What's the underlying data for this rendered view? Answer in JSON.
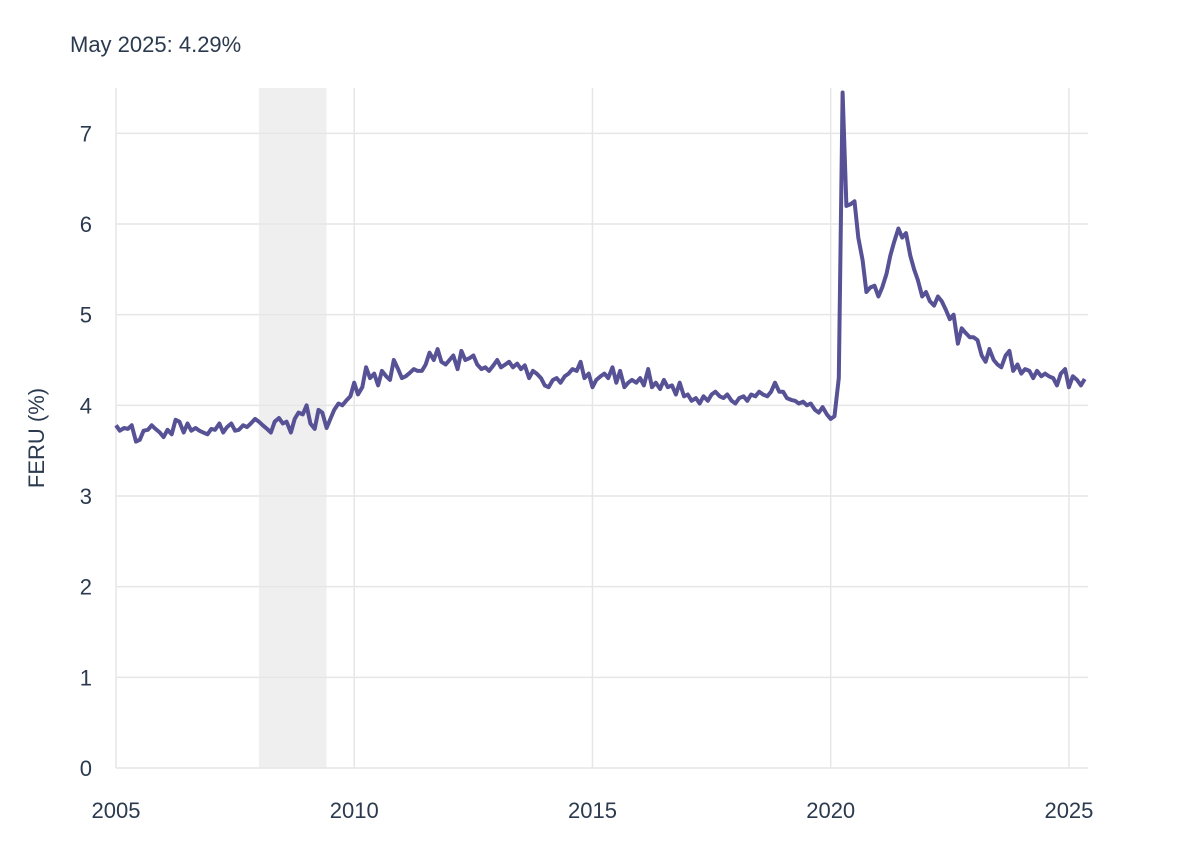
{
  "annotation": "May 2025: 4.29%",
  "chart_data": {
    "type": "line",
    "title": "",
    "xlabel": "",
    "ylabel": "FERU (%)",
    "xlim": [
      2005.0,
      2025.4
    ],
    "ylim": [
      0,
      7.5
    ],
    "x_ticks": [
      2005,
      2010,
      2015,
      2020,
      2025
    ],
    "y_ticks": [
      0,
      1,
      2,
      3,
      4,
      5,
      6,
      7
    ],
    "grid": true,
    "legend": "none",
    "colors": {
      "line": "#575195",
      "grid": "#e6e6e6",
      "recession": "#efefef",
      "text": "#2b3a4e"
    },
    "recessions": [
      [
        2008.0,
        2009.42
      ]
    ],
    "series": [
      {
        "x": [
          2005.0,
          2005.08,
          2005.17,
          2005.25,
          2005.33,
          2005.42,
          2005.5,
          2005.58,
          2005.67,
          2005.75,
          2005.83,
          2005.92,
          2006.0,
          2006.08,
          2006.17,
          2006.25,
          2006.33,
          2006.42,
          2006.5,
          2006.58,
          2006.67,
          2006.75,
          2006.83,
          2006.92,
          2007.0,
          2007.08,
          2007.17,
          2007.25,
          2007.33,
          2007.42,
          2007.5,
          2007.58,
          2007.67,
          2007.75,
          2007.83,
          2007.92,
          2008.0,
          2008.08,
          2008.17,
          2008.25,
          2008.33,
          2008.42,
          2008.5,
          2008.58,
          2008.67,
          2008.75,
          2008.83,
          2008.92,
          2009.0,
          2009.08,
          2009.17,
          2009.25,
          2009.33,
          2009.42,
          2009.5,
          2009.58,
          2009.67,
          2009.75,
          2009.83,
          2009.92,
          2010.0,
          2010.08,
          2010.17,
          2010.25,
          2010.33,
          2010.42,
          2010.5,
          2010.58,
          2010.67,
          2010.75,
          2010.83,
          2010.92,
          2011.0,
          2011.08,
          2011.17,
          2011.25,
          2011.33,
          2011.42,
          2011.5,
          2011.58,
          2011.67,
          2011.75,
          2011.83,
          2011.92,
          2012.0,
          2012.08,
          2012.17,
          2012.25,
          2012.33,
          2012.42,
          2012.5,
          2012.58,
          2012.67,
          2012.75,
          2012.83,
          2012.92,
          2013.0,
          2013.08,
          2013.17,
          2013.25,
          2013.33,
          2013.42,
          2013.5,
          2013.58,
          2013.67,
          2013.75,
          2013.83,
          2013.92,
          2014.0,
          2014.08,
          2014.17,
          2014.25,
          2014.33,
          2014.42,
          2014.5,
          2014.58,
          2014.67,
          2014.75,
          2014.83,
          2014.92,
          2015.0,
          2015.08,
          2015.17,
          2015.25,
          2015.33,
          2015.42,
          2015.5,
          2015.58,
          2015.67,
          2015.75,
          2015.83,
          2015.92,
          2016.0,
          2016.08,
          2016.17,
          2016.25,
          2016.33,
          2016.42,
          2016.5,
          2016.58,
          2016.67,
          2016.75,
          2016.83,
          2016.92,
          2017.0,
          2017.08,
          2017.17,
          2017.25,
          2017.33,
          2017.42,
          2017.5,
          2017.58,
          2017.67,
          2017.75,
          2017.83,
          2017.92,
          2018.0,
          2018.08,
          2018.17,
          2018.25,
          2018.33,
          2018.42,
          2018.5,
          2018.58,
          2018.67,
          2018.75,
          2018.83,
          2018.92,
          2019.0,
          2019.08,
          2019.17,
          2019.25,
          2019.33,
          2019.42,
          2019.5,
          2019.58,
          2019.67,
          2019.75,
          2019.83,
          2019.92,
          2020.0,
          2020.08,
          2020.17,
          2020.25,
          2020.33,
          2020.42,
          2020.5,
          2020.58,
          2020.67,
          2020.75,
          2020.83,
          2020.92,
          2021.0,
          2021.08,
          2021.17,
          2021.25,
          2021.33,
          2021.42,
          2021.5,
          2021.58,
          2021.67,
          2021.75,
          2021.83,
          2021.92,
          2022.0,
          2022.08,
          2022.17,
          2022.25,
          2022.33,
          2022.42,
          2022.5,
          2022.58,
          2022.67,
          2022.75,
          2022.83,
          2022.92,
          2023.0,
          2023.08,
          2023.17,
          2023.25,
          2023.33,
          2023.42,
          2023.5,
          2023.58,
          2023.67,
          2023.75,
          2023.83,
          2023.92,
          2024.0,
          2024.08,
          2024.17,
          2024.25,
          2024.33,
          2024.42,
          2024.5,
          2024.58,
          2024.67,
          2024.75,
          2024.83,
          2024.92,
          2025.0,
          2025.08,
          2025.17,
          2025.25,
          2025.33
        ],
        "y": [
          3.78,
          3.72,
          3.75,
          3.74,
          3.78,
          3.6,
          3.62,
          3.72,
          3.73,
          3.78,
          3.74,
          3.7,
          3.65,
          3.73,
          3.68,
          3.84,
          3.82,
          3.7,
          3.8,
          3.72,
          3.75,
          3.72,
          3.7,
          3.68,
          3.74,
          3.73,
          3.8,
          3.7,
          3.76,
          3.8,
          3.72,
          3.73,
          3.78,
          3.76,
          3.8,
          3.85,
          3.82,
          3.78,
          3.74,
          3.7,
          3.82,
          3.86,
          3.8,
          3.82,
          3.7,
          3.85,
          3.92,
          3.9,
          4.0,
          3.8,
          3.74,
          3.95,
          3.92,
          3.75,
          3.85,
          3.95,
          4.02,
          4.0,
          4.05,
          4.1,
          4.25,
          4.12,
          4.2,
          4.42,
          4.3,
          4.35,
          4.22,
          4.38,
          4.32,
          4.28,
          4.5,
          4.4,
          4.3,
          4.32,
          4.36,
          4.4,
          4.38,
          4.38,
          4.45,
          4.58,
          4.5,
          4.62,
          4.48,
          4.45,
          4.5,
          4.55,
          4.4,
          4.6,
          4.5,
          4.52,
          4.55,
          4.45,
          4.4,
          4.42,
          4.38,
          4.44,
          4.5,
          4.42,
          4.45,
          4.48,
          4.42,
          4.46,
          4.4,
          4.44,
          4.3,
          4.38,
          4.35,
          4.3,
          4.22,
          4.2,
          4.28,
          4.3,
          4.25,
          4.32,
          4.35,
          4.4,
          4.38,
          4.48,
          4.3,
          4.35,
          4.2,
          4.28,
          4.32,
          4.35,
          4.3,
          4.42,
          4.25,
          4.38,
          4.2,
          4.25,
          4.28,
          4.25,
          4.3,
          4.22,
          4.4,
          4.2,
          4.25,
          4.18,
          4.28,
          4.2,
          4.22,
          4.12,
          4.25,
          4.1,
          4.12,
          4.05,
          4.08,
          4.02,
          4.1,
          4.05,
          4.12,
          4.15,
          4.1,
          4.08,
          4.12,
          4.05,
          4.02,
          4.08,
          4.1,
          4.05,
          4.12,
          4.1,
          4.15,
          4.12,
          4.1,
          4.15,
          4.25,
          4.15,
          4.15,
          4.08,
          4.06,
          4.05,
          4.02,
          4.04,
          4.0,
          4.02,
          3.95,
          3.92,
          3.98,
          3.9,
          3.85,
          3.88,
          4.3,
          7.45,
          6.2,
          6.22,
          6.25,
          5.85,
          5.6,
          5.25,
          5.3,
          5.32,
          5.2,
          5.3,
          5.45,
          5.65,
          5.8,
          5.95,
          5.85,
          5.9,
          5.65,
          5.5,
          5.38,
          5.2,
          5.25,
          5.15,
          5.1,
          5.2,
          5.15,
          5.05,
          4.95,
          5.0,
          4.68,
          4.85,
          4.8,
          4.75,
          4.75,
          4.72,
          4.55,
          4.48,
          4.62,
          4.5,
          4.45,
          4.42,
          4.55,
          4.6,
          4.38,
          4.45,
          4.35,
          4.4,
          4.38,
          4.3,
          4.38,
          4.32,
          4.35,
          4.32,
          4.3,
          4.22,
          4.35,
          4.4,
          4.2,
          4.32,
          4.28,
          4.22,
          4.29
        ]
      }
    ]
  }
}
